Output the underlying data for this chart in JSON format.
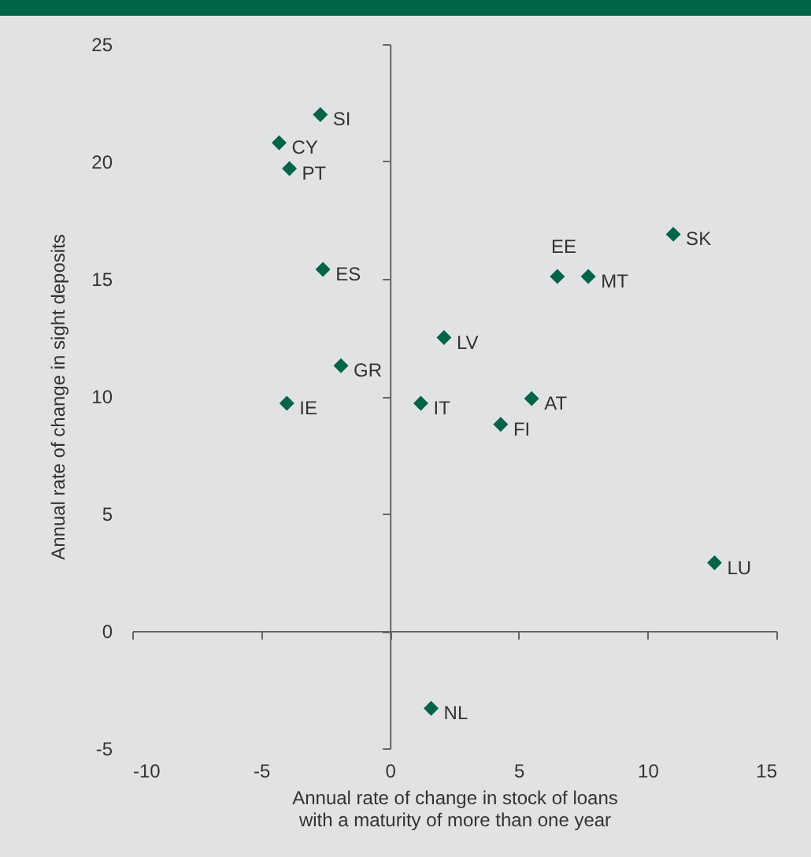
{
  "chart_data": {
    "type": "scatter",
    "xlabel": "Annual rate of change in stock of loans\nwith a maturity of more than one year",
    "ylabel": "Annual rate of change in sight deposits",
    "marker": "diamond",
    "xlim": [
      -10,
      15
    ],
    "xticks": [
      -10,
      -5,
      0,
      5,
      10,
      15
    ],
    "ylim": [
      -5,
      25
    ],
    "yticks": [
      -5,
      0,
      5,
      10,
      15,
      20,
      25
    ],
    "series": [
      {
        "color": "#006446",
        "x": [
          -2.7,
          -4.3,
          -3.9,
          -2.6,
          -1.9,
          -4.0,
          1.2,
          2.1,
          5.5,
          4.3,
          6.5,
          7.7,
          11.0,
          12.6,
          1.6
        ],
        "values": [
          22.0,
          20.8,
          19.7,
          15.4,
          11.3,
          9.7,
          9.7,
          12.5,
          9.9,
          8.8,
          15.1,
          15.1,
          16.9,
          2.9,
          -3.3
        ]
      }
    ],
    "annotations": [
      {
        "text": "SI",
        "x": -2.7,
        "y": 22.0
      },
      {
        "text": "CY",
        "x": -4.3,
        "y": 20.8
      },
      {
        "text": "PT",
        "x": -3.9,
        "y": 19.7
      },
      {
        "text": "ES",
        "x": -2.6,
        "y": 15.4
      },
      {
        "text": "GR",
        "x": -1.9,
        "y": 11.3
      },
      {
        "text": "IE",
        "x": -4.0,
        "y": 9.7
      },
      {
        "text": "IT",
        "x": 1.2,
        "y": 9.7
      },
      {
        "text": "LV",
        "x": 2.1,
        "y": 12.5
      },
      {
        "text": "AT",
        "x": 5.5,
        "y": 9.9
      },
      {
        "text": "FI",
        "x": 4.3,
        "y": 8.8
      },
      {
        "text": "EE",
        "x": 6.5,
        "y": 15.1
      },
      {
        "text": "MT",
        "x": 7.7,
        "y": 15.1
      },
      {
        "text": "SK",
        "x": 11.0,
        "y": 16.9
      },
      {
        "text": "LU",
        "x": 12.6,
        "y": 2.9
      },
      {
        "text": "NL",
        "x": 1.6,
        "y": -3.3
      }
    ]
  }
}
